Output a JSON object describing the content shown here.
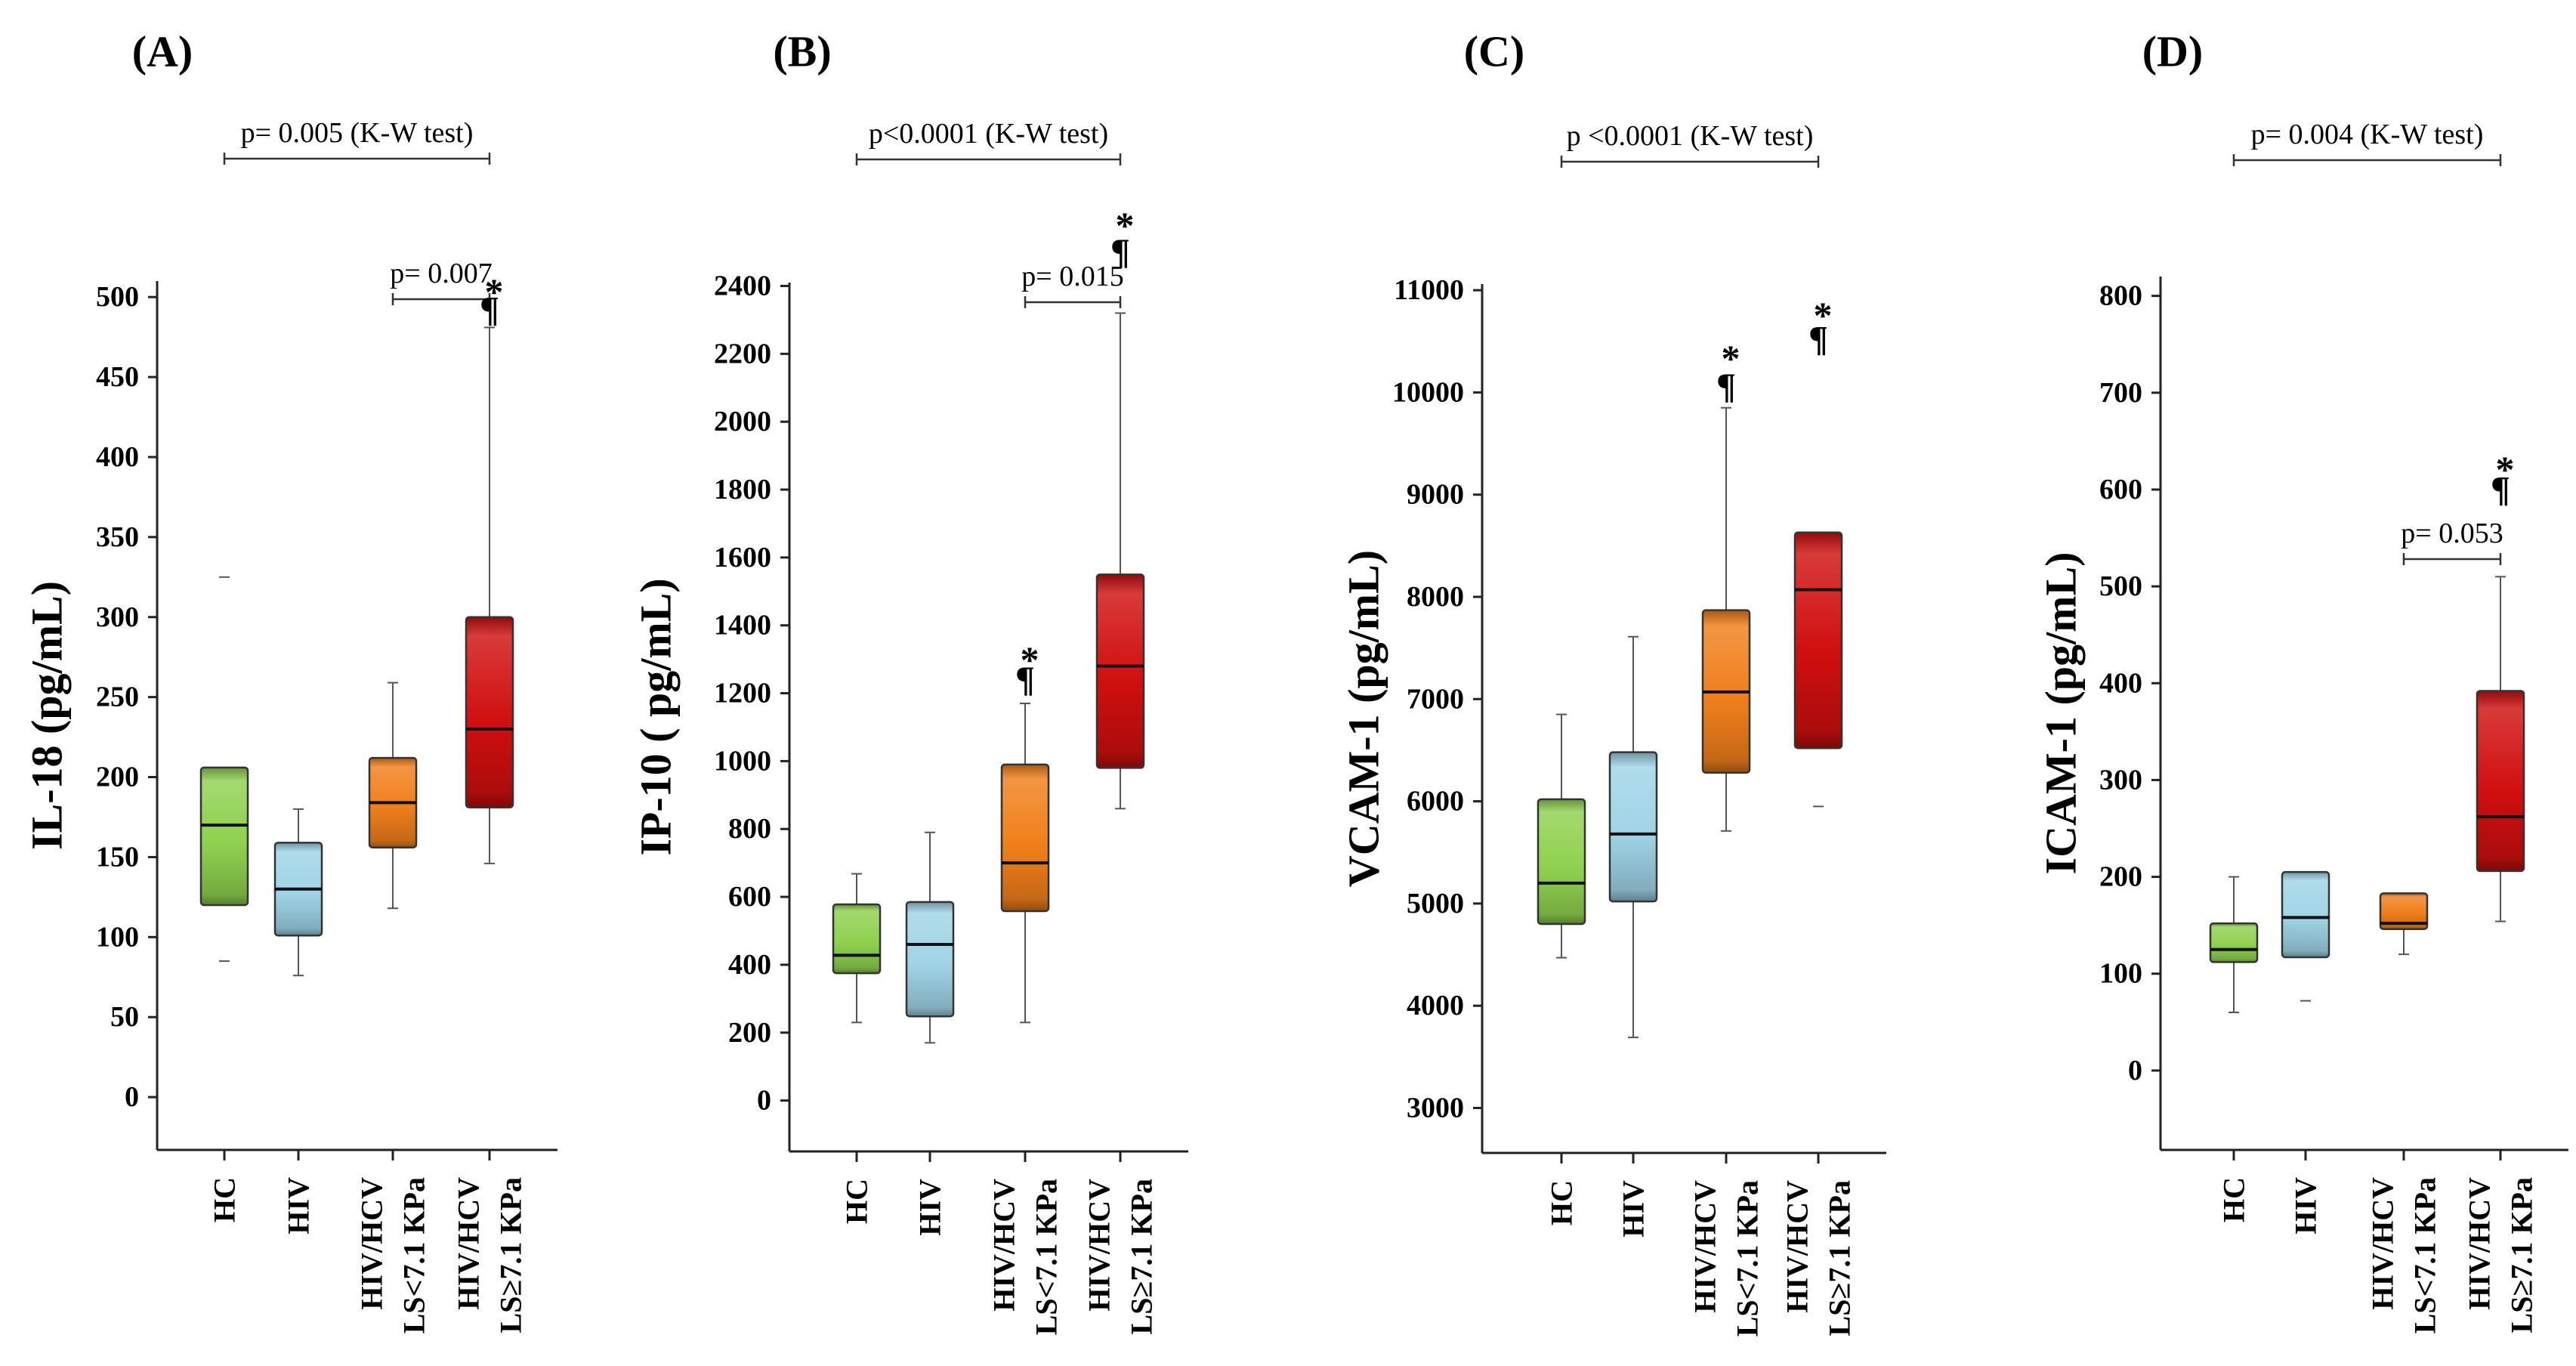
{
  "figure": {
    "category_labels": [
      [
        "HC"
      ],
      [
        "HIV"
      ],
      [
        "HIV/HCV",
        "LS<7.1 KPa"
      ],
      [
        "HIV/HCV",
        "LS≥7.1 KPa"
      ]
    ],
    "colors": {
      "HC": "#8fd14f",
      "HIV": "#9fd4e6",
      "HIV/HCV LS<7.1 KPa": "#f07f1b",
      "HIV/HCV LS≥7.1 KPa": "#d10f0f"
    },
    "symbols": {
      "star": "*",
      "pilcrow": "¶"
    }
  },
  "chart_data": [
    {
      "type": "boxplot",
      "panel_label": "(A)",
      "ylabel": "IL-18 (pg/mL)",
      "categories": [
        "HC",
        "HIV",
        "HIV/HCV LS<7.1 KPa",
        "HIV/HCV LS≥7.1 KPa"
      ],
      "yticks": [
        0,
        50,
        100,
        150,
        200,
        250,
        300,
        350,
        400,
        450,
        500
      ],
      "ylim": [
        -33,
        510
      ],
      "boxes": [
        {
          "whisker_low": null,
          "q1": 120,
          "median": 170,
          "q3": 206,
          "whisker_high": null,
          "outliers": [
            85,
            325
          ]
        },
        {
          "whisker_low": 76,
          "q1": 101,
          "median": 130,
          "q3": 159,
          "whisker_high": 180,
          "outliers": []
        },
        {
          "whisker_low": 118,
          "q1": 156,
          "median": 184,
          "q3": 212,
          "whisker_high": 259,
          "outliers": []
        },
        {
          "whisker_low": 146,
          "q1": 181,
          "median": 230,
          "q3": 300,
          "whisker_high": 481,
          "outliers": []
        }
      ],
      "brackets": [
        {
          "from": 0,
          "to": 3,
          "level": "top",
          "label": "p= 0.005 (K-W test)"
        },
        {
          "from": 2,
          "to": 3,
          "level": "low",
          "label": "p= 0.007"
        }
      ],
      "markers": [
        {
          "category": 3,
          "star": 510,
          "pilcrow": 492
        }
      ]
    },
    {
      "type": "boxplot",
      "panel_label": "(B)",
      "ylabel": "IP-10 ( pg/mL)",
      "categories": [
        "HC",
        "HIV",
        "HIV/HCV LS<7.1 KPa",
        "HIV/HCV LS≥7.1 KPa"
      ],
      "yticks": [
        0,
        200,
        400,
        600,
        800,
        1000,
        1200,
        1400,
        1600,
        1800,
        2000,
        2200,
        2400
      ],
      "ylim": [
        -150,
        2410
      ],
      "boxes": [
        {
          "whisker_low": 230,
          "q1": 375,
          "median": 428,
          "q3": 578,
          "whisker_high": 668,
          "outliers": []
        },
        {
          "whisker_low": 170,
          "q1": 248,
          "median": 460,
          "q3": 585,
          "whisker_high": 790,
          "outliers": []
        },
        {
          "whisker_low": 230,
          "q1": 558,
          "median": 700,
          "q3": 990,
          "whisker_high": 1170,
          "outliers": []
        },
        {
          "whisker_low": 860,
          "q1": 980,
          "median": 1280,
          "q3": 1550,
          "whisker_high": 2320,
          "outliers": []
        }
      ],
      "brackets": [
        {
          "from": 0,
          "to": 3,
          "level": "top",
          "label": "p<0.0001 (K-W test)"
        },
        {
          "from": 2,
          "to": 3,
          "level": "low",
          "label": "p= 0.015"
        }
      ],
      "markers": [
        {
          "category": 2,
          "star": 1330,
          "pilcrow": 1240
        },
        {
          "category": 3,
          "star": 2610,
          "pilcrow": 2500
        }
      ]
    },
    {
      "type": "boxplot",
      "panel_label": "(C)",
      "ylabel": "VCAM-1  (pg/mL)",
      "categories": [
        "HC",
        "HIV",
        "HIV/HCV LS<7.1 KPa",
        "HIV/HCV LS≥7.1 KPa"
      ],
      "yticks": [
        3000,
        4000,
        5000,
        6000,
        7000,
        8000,
        9000,
        10000,
        11000
      ],
      "ylim": [
        2560,
        11060
      ],
      "boxes": [
        {
          "whisker_low": 4470,
          "q1": 4800,
          "median": 5200,
          "q3": 6020,
          "whisker_high": 6850,
          "outliers": []
        },
        {
          "whisker_low": 3690,
          "q1": 5020,
          "median": 5680,
          "q3": 6480,
          "whisker_high": 7610,
          "outliers": []
        },
        {
          "whisker_low": 5710,
          "q1": 6280,
          "median": 7070,
          "q3": 7870,
          "whisker_high": 9850,
          "outliers": []
        },
        {
          "whisker_low": null,
          "q1": 6520,
          "median": 8070,
          "q3": 8630,
          "whisker_high": null,
          "outliers": [
            5950
          ]
        }
      ],
      "brackets": [
        {
          "from": 0,
          "to": 3,
          "level": "top",
          "label": "p <0.0001 (K-W test)"
        }
      ],
      "markers": [
        {
          "category": 2,
          "star": 10440,
          "pilcrow": 10060
        },
        {
          "category": 3,
          "star": 10860,
          "pilcrow": 10520
        }
      ]
    },
    {
      "type": "boxplot",
      "panel_label": "(D)",
      "ylabel": "ICAM-1 (pg/mL)",
      "categories": [
        "HC",
        "HIV",
        "HIV/HCV LS<7.1 KPa",
        "HIV/HCV LS≥7.1 KPa"
      ],
      "yticks": [
        0,
        100,
        200,
        300,
        400,
        500,
        600,
        700,
        800
      ],
      "ylim": [
        -82,
        820
      ],
      "boxes": [
        {
          "whisker_low": 60,
          "q1": 112,
          "median": 125,
          "q3": 152,
          "whisker_high": 200,
          "outliers": []
        },
        {
          "whisker_low": null,
          "q1": 117,
          "median": 158,
          "q3": 205,
          "whisker_high": null,
          "outliers": [
            72
          ]
        },
        {
          "whisker_low": 120,
          "q1": 146,
          "median": 152,
          "q3": 183,
          "whisker_high": null,
          "outliers": []
        },
        {
          "whisker_low": 154,
          "q1": 206,
          "median": 262,
          "q3": 392,
          "whisker_high": 510,
          "outliers": []
        }
      ],
      "brackets": [
        {
          "from": 0,
          "to": 3,
          "level": "top",
          "label": "p= 0.004 (K-W test)"
        },
        {
          "from": 2,
          "to": 3,
          "level": "low",
          "label": "p= 0.053"
        }
      ],
      "markers": [
        {
          "category": 3,
          "star": 632,
          "pilcrow": 600
        }
      ]
    }
  ]
}
